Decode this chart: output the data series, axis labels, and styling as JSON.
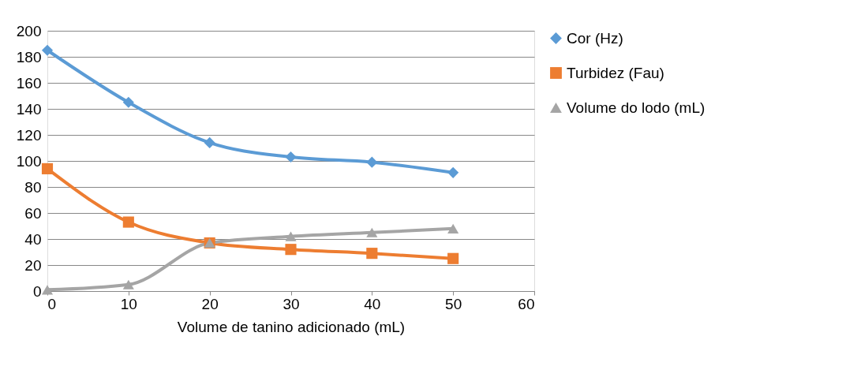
{
  "chart_data": {
    "type": "line",
    "xlabel": "Volume de tanino adicionado (mL)",
    "x": [
      0,
      10,
      20,
      30,
      40,
      50
    ],
    "series": [
      {
        "name": "Cor (Hz)",
        "color": "#5b9bd5",
        "marker": "diamond",
        "values": [
          185,
          145,
          114,
          103,
          99,
          91
        ]
      },
      {
        "name": "Turbidez (Fau)",
        "color": "#ed7d31",
        "marker": "square",
        "values": [
          94,
          53,
          37,
          32,
          29,
          25
        ]
      },
      {
        "name": "Volume do lodo (mL)",
        "color": "#a5a5a5",
        "marker": "triangle",
        "values": [
          1,
          5,
          37,
          42,
          45,
          48
        ]
      }
    ],
    "xlim": [
      0,
      60
    ],
    "xticks": [
      0,
      10,
      20,
      30,
      40,
      50,
      60
    ],
    "ylim": [
      0,
      200
    ],
    "yticks": [
      0,
      20,
      40,
      60,
      80,
      100,
      120,
      140,
      160,
      180,
      200
    ],
    "grid": "y",
    "legend": "right",
    "line_style": "solid"
  }
}
